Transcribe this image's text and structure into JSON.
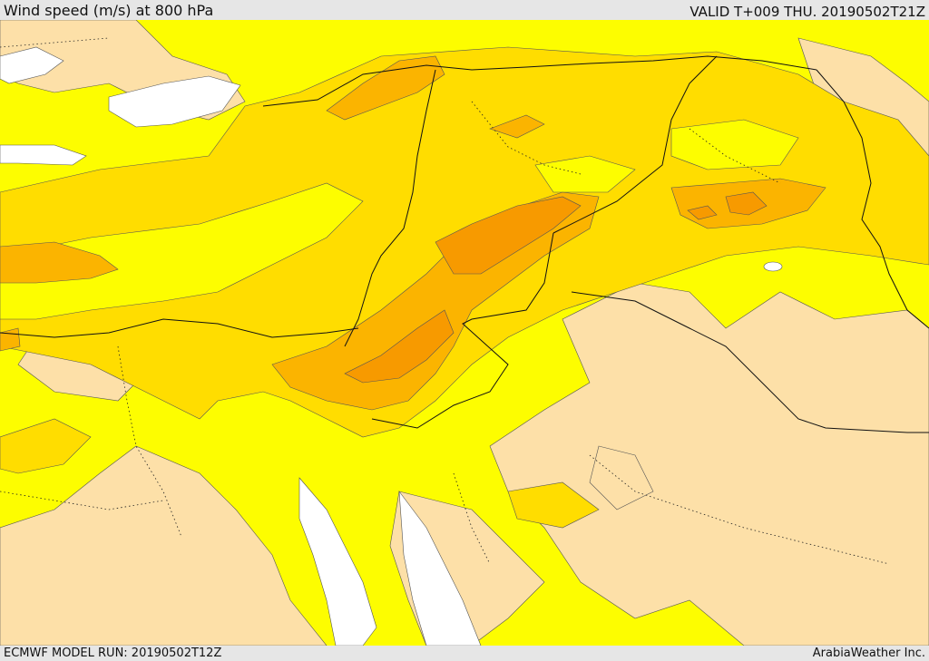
{
  "header": {
    "title": "Wind speed (m/s) at 800 hPa",
    "valid": "VALID T+009 THU. 20190502T21Z"
  },
  "footer": {
    "model_run": "ECMWF MODEL RUN: 20190502T12Z",
    "credit": "ArabiaWeather Inc."
  },
  "palette": {
    "calm": "#ffffff",
    "low": "#fde0a8",
    "moderate": "#fdfd00",
    "fresh": "#ffdd00",
    "strong": "#fbb400",
    "very_strong": "#f79a00",
    "contour": "#555555",
    "border": "#111111"
  }
}
